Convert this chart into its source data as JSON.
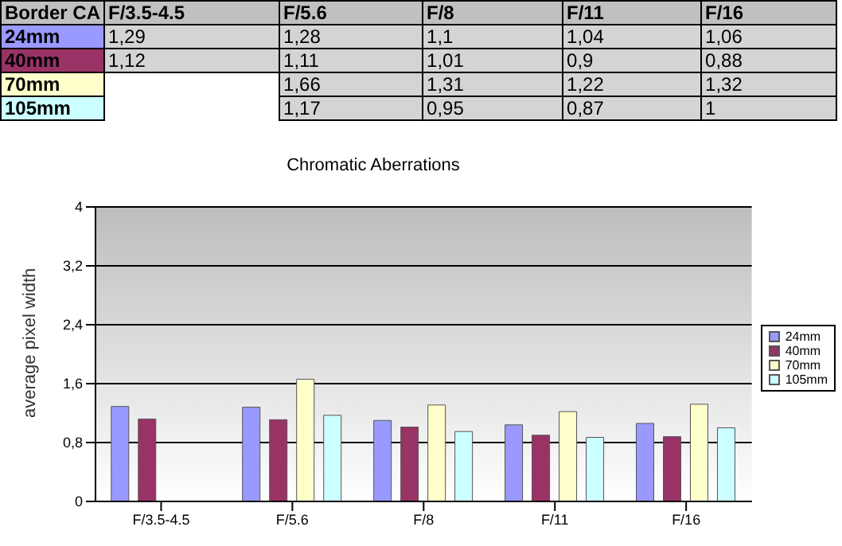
{
  "chart_data": {
    "type": "bar",
    "title": "Chromatic Aberrations",
    "ylabel": "average pixel width",
    "annotations": [
      "Border CA"
    ],
    "categories": [
      "F/3.5-4.5",
      "F/5.6",
      "F/8",
      "F/11",
      "F/16"
    ],
    "series": [
      {
        "name": "24mm",
        "color": "#9999ff",
        "values": [
          1.29,
          1.28,
          1.1,
          1.04,
          1.06
        ],
        "value_labels": [
          "1,29",
          "1,28",
          "1,1",
          "1,04",
          "1,06"
        ]
      },
      {
        "name": "40mm",
        "color": "#993366",
        "values": [
          1.12,
          1.11,
          1.01,
          0.9,
          0.88
        ],
        "value_labels": [
          "1,12",
          "1,11",
          "1,01",
          "0,9",
          "0,88"
        ]
      },
      {
        "name": "70mm",
        "color": "#ffffcc",
        "values": [
          null,
          1.66,
          1.31,
          1.22,
          1.32
        ],
        "value_labels": [
          null,
          "1,66",
          "1,31",
          "1,22",
          "1,32"
        ]
      },
      {
        "name": "105mm",
        "color": "#ccffff",
        "values": [
          null,
          1.17,
          0.95,
          0.87,
          1
        ],
        "value_labels": [
          null,
          "1,17",
          "0,95",
          "0,87",
          "1"
        ]
      }
    ],
    "ylim": [
      0,
      4
    ],
    "yticks": [
      0,
      {
        "value": 0.8,
        "label": "0,8"
      },
      {
        "value": 1.6,
        "label": "1,6"
      },
      {
        "value": 2.4,
        "label": "2,4"
      },
      {
        "value": 3.2,
        "label": "3,2"
      },
      4
    ],
    "grid": "y",
    "legend": "right"
  }
}
